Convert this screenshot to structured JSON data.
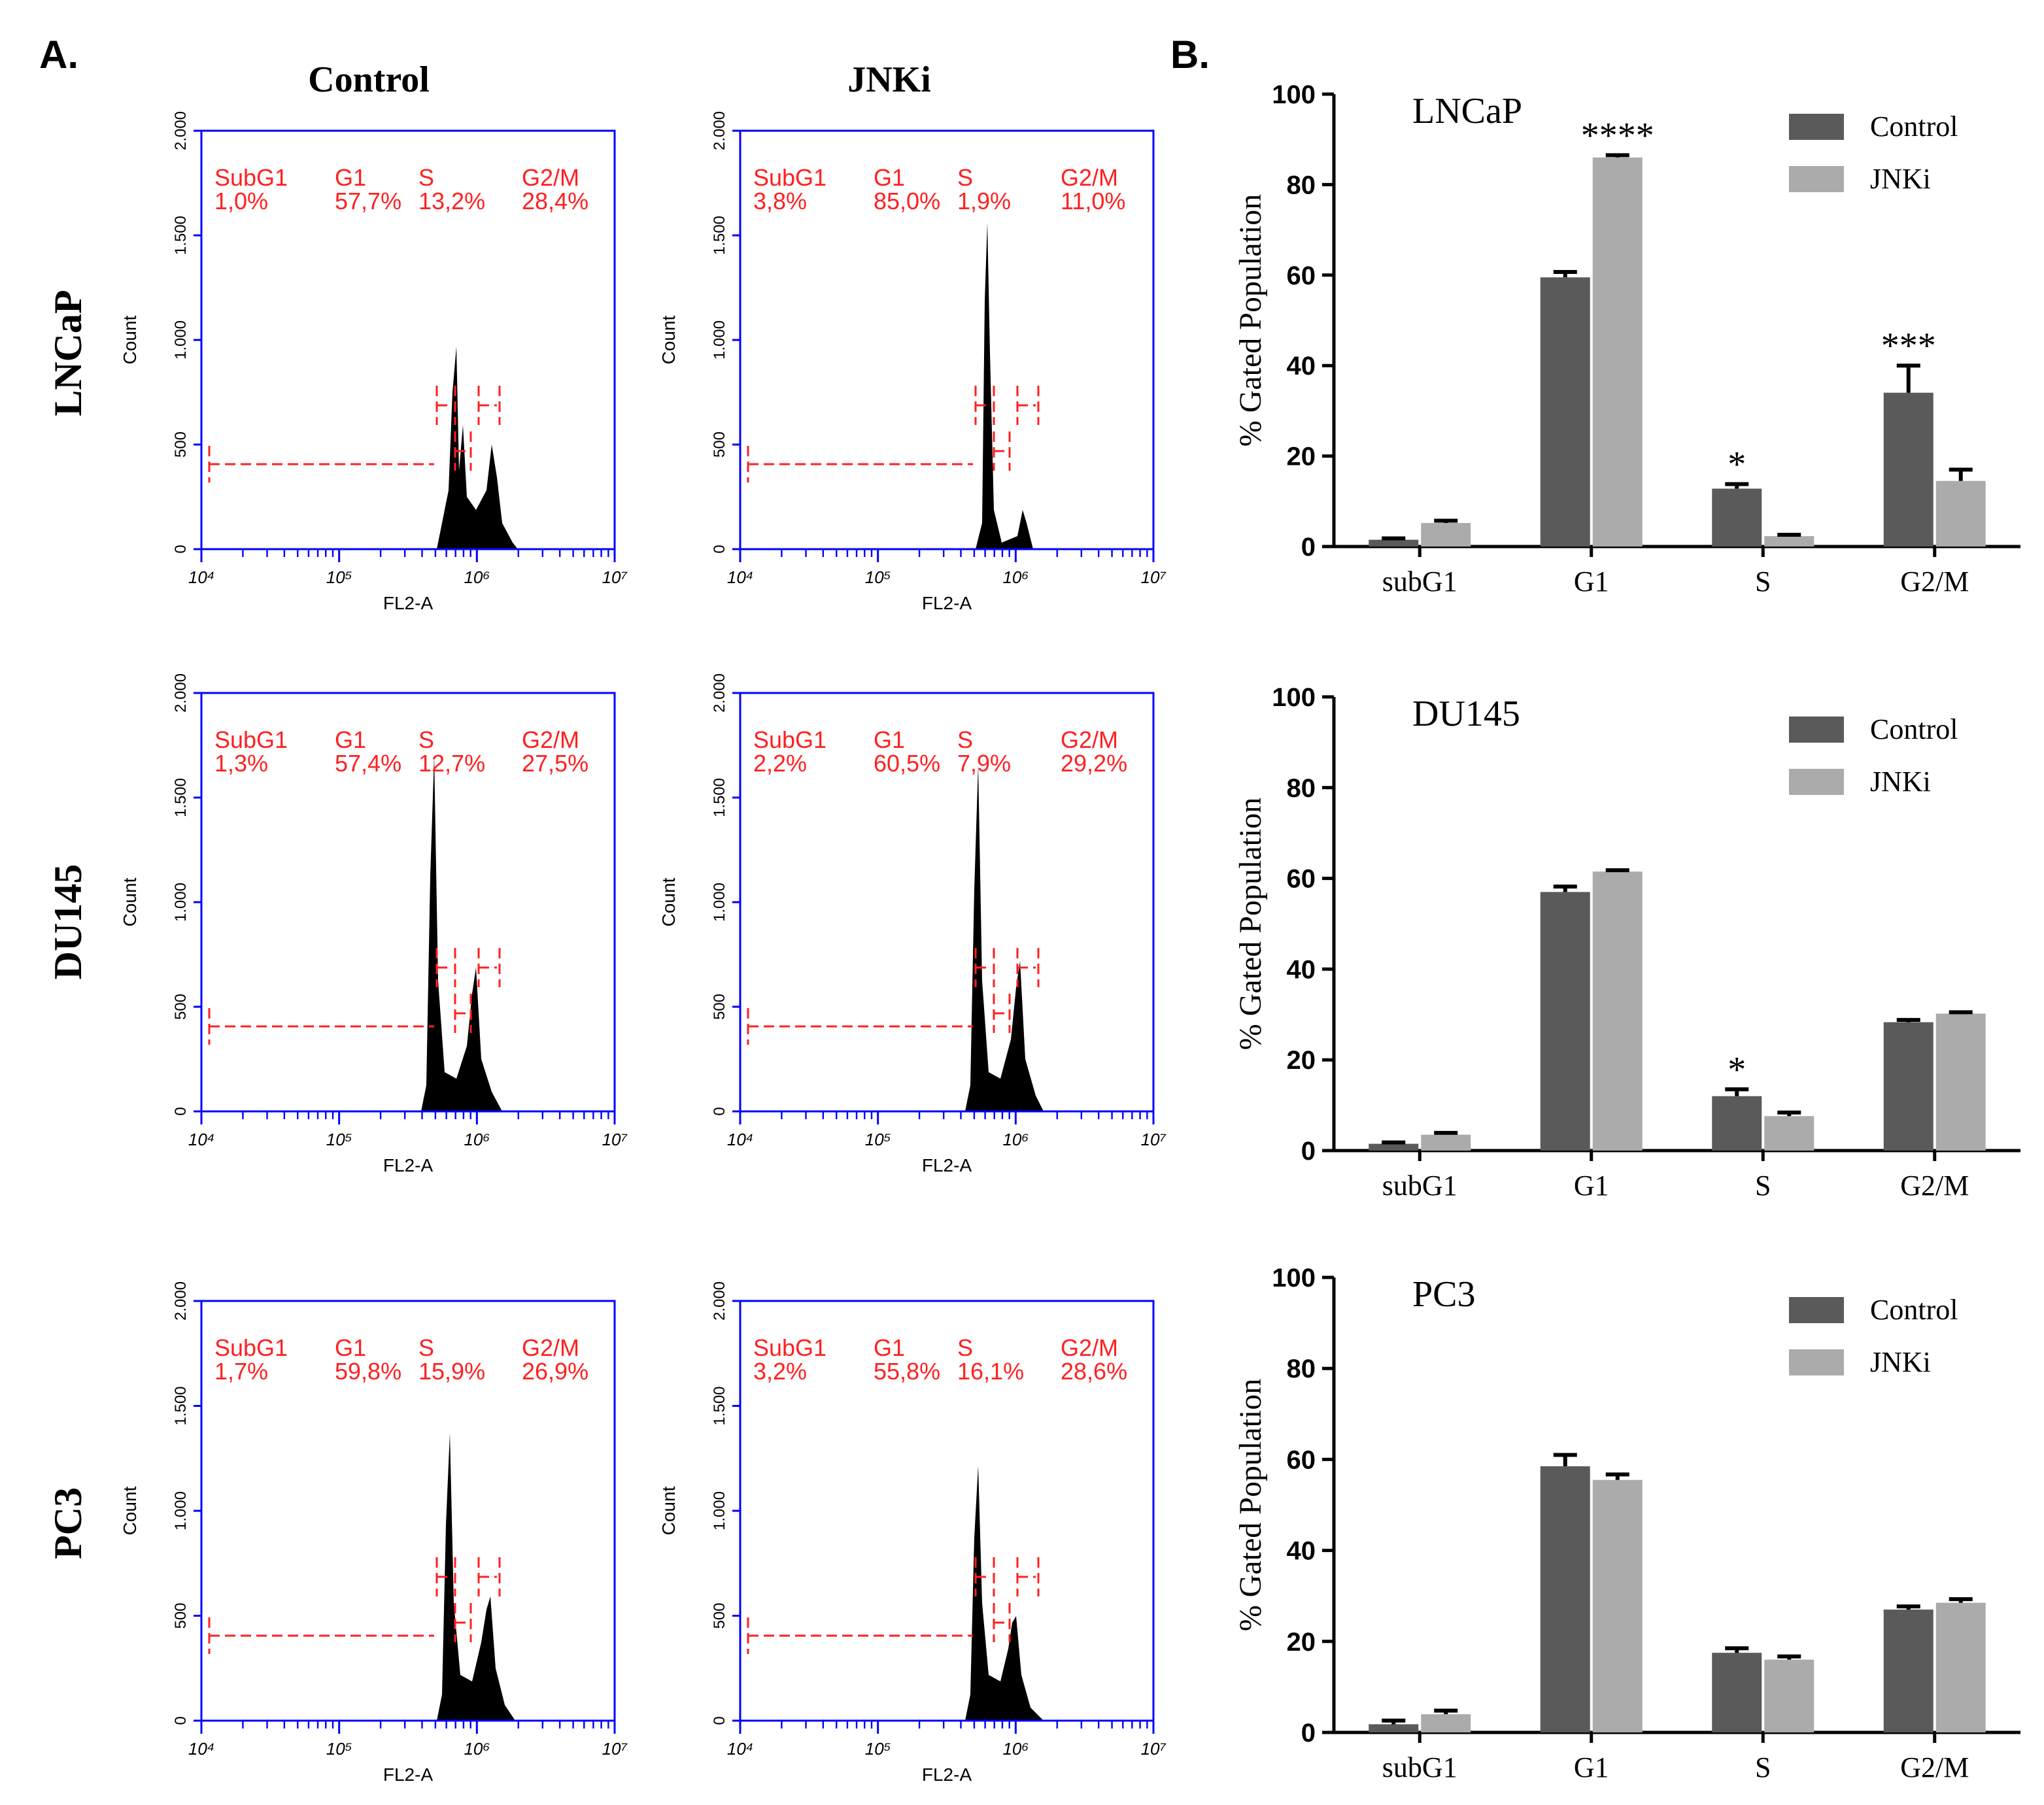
{
  "figure": {
    "label_a": "A.",
    "label_b": "B.",
    "column_titles": [
      "Control",
      "JNKi"
    ],
    "row_titles": [
      "LNCaP",
      "DU145",
      "PC3"
    ]
  },
  "chart_data": [
    {
      "type": "flow-histogram",
      "xlabel": "FL2-A",
      "ylabel": "Count",
      "log_x": true,
      "xlim": [
        10000,
        10000000
      ],
      "xticks": [
        {
          "value": 10000,
          "label": "10⁴"
        },
        {
          "value": 100000,
          "label": "10⁵"
        },
        {
          "value": 1000000,
          "label": "10⁶"
        },
        {
          "value": 10000000,
          "label": "10⁷"
        }
      ],
      "ylim": [
        0,
        2000
      ],
      "yticks": [
        0,
        500,
        {
          "value": 1000,
          "label": "1.000"
        },
        {
          "value": 1500,
          "label": "1.500"
        },
        {
          "value": 2000,
          "label": "2.000"
        }
      ],
      "color": "#0000ff",
      "gate_color": "#ff2020",
      "gates": [
        {
          "name": "SubG1",
          "value": 1.0,
          "value_label": "1,0%"
        },
        {
          "name": "G1",
          "value": 57.7,
          "value_label": "57,7%"
        },
        {
          "name": "S",
          "value": 13.2,
          "value_label": "13,2%"
        },
        {
          "name": "G2/M",
          "value": 28.4,
          "value_label": "28,4%"
        }
      ]
    },
    {
      "type": "flow-histogram",
      "xlabel": "FL2-A",
      "ylabel": "Count",
      "log_x": true,
      "xlim": [
        10000,
        10000000
      ],
      "xticks": [
        {
          "value": 10000,
          "label": "10⁴"
        },
        {
          "value": 100000,
          "label": "10⁵"
        },
        {
          "value": 1000000,
          "label": "10⁶"
        },
        {
          "value": 10000000,
          "label": "10⁷"
        }
      ],
      "ylim": [
        0,
        2000
      ],
      "yticks": [
        0,
        500,
        {
          "value": 1000,
          "label": "1.000"
        },
        {
          "value": 1500,
          "label": "1.500"
        },
        {
          "value": 2000,
          "label": "2.000"
        }
      ],
      "color": "#0000ff",
      "gate_color": "#ff2020",
      "gates": [
        {
          "name": "SubG1",
          "value": 3.8,
          "value_label": "3,8%"
        },
        {
          "name": "G1",
          "value": 85.0,
          "value_label": "85,0%"
        },
        {
          "name": "S",
          "value": 1.9,
          "value_label": "1,9%"
        },
        {
          "name": "G2/M",
          "value": 11.0,
          "value_label": "11,0%"
        }
      ]
    },
    {
      "type": "flow-histogram",
      "xlabel": "FL2-A",
      "ylabel": "Count",
      "log_x": true,
      "xlim": [
        10000,
        10000000
      ],
      "xticks": [
        {
          "value": 10000,
          "label": "10⁴"
        },
        {
          "value": 100000,
          "label": "10⁵"
        },
        {
          "value": 1000000,
          "label": "10⁶"
        },
        {
          "value": 10000000,
          "label": "10⁷"
        }
      ],
      "ylim": [
        0,
        2000
      ],
      "yticks": [
        0,
        500,
        {
          "value": 1000,
          "label": "1.000"
        },
        {
          "value": 1500,
          "label": "1.500"
        },
        {
          "value": 2000,
          "label": "2.000"
        }
      ],
      "color": "#0000ff",
      "gate_color": "#ff2020",
      "gates": [
        {
          "name": "SubG1",
          "value": 1.3,
          "value_label": "1,3%"
        },
        {
          "name": "G1",
          "value": 57.4,
          "value_label": "57,4%"
        },
        {
          "name": "S",
          "value": 12.7,
          "value_label": "12,7%"
        },
        {
          "name": "G2/M",
          "value": 27.5,
          "value_label": "27,5%"
        }
      ]
    },
    {
      "type": "flow-histogram",
      "xlabel": "FL2-A",
      "ylabel": "Count",
      "log_x": true,
      "xlim": [
        10000,
        10000000
      ],
      "xticks": [
        {
          "value": 10000,
          "label": "10⁴"
        },
        {
          "value": 100000,
          "label": "10⁵"
        },
        {
          "value": 1000000,
          "label": "10⁶"
        },
        {
          "value": 10000000,
          "label": "10⁷"
        }
      ],
      "ylim": [
        0,
        2000
      ],
      "yticks": [
        0,
        500,
        {
          "value": 1000,
          "label": "1.000"
        },
        {
          "value": 1500,
          "label": "1.500"
        },
        {
          "value": 2000,
          "label": "2.000"
        }
      ],
      "color": "#0000ff",
      "gate_color": "#ff2020",
      "gates": [
        {
          "name": "SubG1",
          "value": 2.2,
          "value_label": "2,2%"
        },
        {
          "name": "G1",
          "value": 60.5,
          "value_label": "60,5%"
        },
        {
          "name": "S",
          "value": 7.9,
          "value_label": "7,9%"
        },
        {
          "name": "G2/M",
          "value": 29.2,
          "value_label": "29,2%"
        }
      ]
    },
    {
      "type": "flow-histogram",
      "xlabel": "FL2-A",
      "ylabel": "Count",
      "log_x": true,
      "xlim": [
        10000,
        10000000
      ],
      "xticks": [
        {
          "value": 10000,
          "label": "10⁴"
        },
        {
          "value": 100000,
          "label": "10⁵"
        },
        {
          "value": 1000000,
          "label": "10⁶"
        },
        {
          "value": 10000000,
          "label": "10⁷"
        }
      ],
      "ylim": [
        0,
        2000
      ],
      "yticks": [
        0,
        500,
        {
          "value": 1000,
          "label": "1.000"
        },
        {
          "value": 1500,
          "label": "1.500"
        },
        {
          "value": 2000,
          "label": "2.000"
        }
      ],
      "color": "#0000ff",
      "gate_color": "#ff2020",
      "gates": [
        {
          "name": "SubG1",
          "value": 1.7,
          "value_label": "1,7%"
        },
        {
          "name": "G1",
          "value": 59.8,
          "value_label": "59,8%"
        },
        {
          "name": "S",
          "value": 15.9,
          "value_label": "15,9%"
        },
        {
          "name": "G2/M",
          "value": 26.9,
          "value_label": "26,9%"
        }
      ]
    },
    {
      "type": "flow-histogram",
      "xlabel": "FL2-A",
      "ylabel": "Count",
      "log_x": true,
      "xlim": [
        10000,
        10000000
      ],
      "xticks": [
        {
          "value": 10000,
          "label": "10⁴"
        },
        {
          "value": 100000,
          "label": "10⁵"
        },
        {
          "value": 1000000,
          "label": "10⁶"
        },
        {
          "value": 10000000,
          "label": "10⁷"
        }
      ],
      "ylim": [
        0,
        2000
      ],
      "yticks": [
        0,
        500,
        {
          "value": 1000,
          "label": "1.000"
        },
        {
          "value": 1500,
          "label": "1.500"
        },
        {
          "value": 2000,
          "label": "2.000"
        }
      ],
      "color": "#0000ff",
      "gate_color": "#ff2020",
      "gates": [
        {
          "name": "SubG1",
          "value": 3.2,
          "value_label": "3,2%"
        },
        {
          "name": "G1",
          "value": 55.8,
          "value_label": "55,8%"
        },
        {
          "name": "S",
          "value": 16.1,
          "value_label": "16,1%"
        },
        {
          "name": "G2/M",
          "value": 28.6,
          "value_label": "28,6%"
        }
      ]
    },
    {
      "type": "bar",
      "title": "LNCaP",
      "ylabel": "% Gated Population",
      "categories": [
        "subG1",
        "G1",
        "S",
        "G2/M"
      ],
      "ylim": [
        0,
        100
      ],
      "yticks": [
        0,
        20,
        40,
        60,
        80,
        100
      ],
      "legend": "top-right",
      "series": [
        {
          "name": "Control",
          "color": "#5a5a5a",
          "values": [
            1.5,
            59.5,
            12.8,
            34
          ],
          "errors": [
            0.3,
            1.2,
            1,
            6
          ]
        },
        {
          "name": "JNKi",
          "color": "#ababab",
          "values": [
            5.2,
            86,
            2.3,
            14.5
          ],
          "errors": [
            0.5,
            0.5,
            0.3,
            2.5
          ]
        }
      ],
      "annotations": [
        {
          "text": "****",
          "category": "G1"
        },
        {
          "text": "*",
          "category": "S"
        },
        {
          "text": "***",
          "category": "G2/M"
        }
      ]
    },
    {
      "type": "bar",
      "title": "DU145",
      "ylabel": "% Gated Population",
      "categories": [
        "subG1",
        "G1",
        "S",
        "G2/M"
      ],
      "ylim": [
        0,
        100
      ],
      "yticks": [
        0,
        20,
        40,
        60,
        80,
        100
      ],
      "legend": "top-right",
      "series": [
        {
          "name": "Control",
          "color": "#5a5a5a",
          "values": [
            1.5,
            57,
            12,
            28.3
          ],
          "errors": [
            0.3,
            1.2,
            1.5,
            0.5
          ]
        },
        {
          "name": "JNKi",
          "color": "#ababab",
          "values": [
            3.5,
            61.5,
            7.6,
            30.2
          ],
          "errors": [
            0.4,
            0.3,
            0.8,
            0.3
          ]
        }
      ],
      "annotations": [
        {
          "text": "*",
          "category": "S"
        }
      ]
    },
    {
      "type": "bar",
      "title": "PC3",
      "ylabel": "% Gated Population",
      "categories": [
        "subG1",
        "G1",
        "S",
        "G2/M"
      ],
      "ylim": [
        0,
        100
      ],
      "yticks": [
        0,
        20,
        40,
        60,
        80,
        100
      ],
      "legend": "top-right",
      "series": [
        {
          "name": "Control",
          "color": "#5a5a5a",
          "values": [
            1.8,
            58.5,
            17.5,
            27
          ],
          "errors": [
            0.8,
            2.5,
            1,
            0.7
          ]
        },
        {
          "name": "JNKi",
          "color": "#ababab",
          "values": [
            4,
            55.5,
            16,
            28.5
          ],
          "errors": [
            0.8,
            1.2,
            0.7,
            0.8
          ]
        }
      ],
      "annotations": []
    }
  ]
}
